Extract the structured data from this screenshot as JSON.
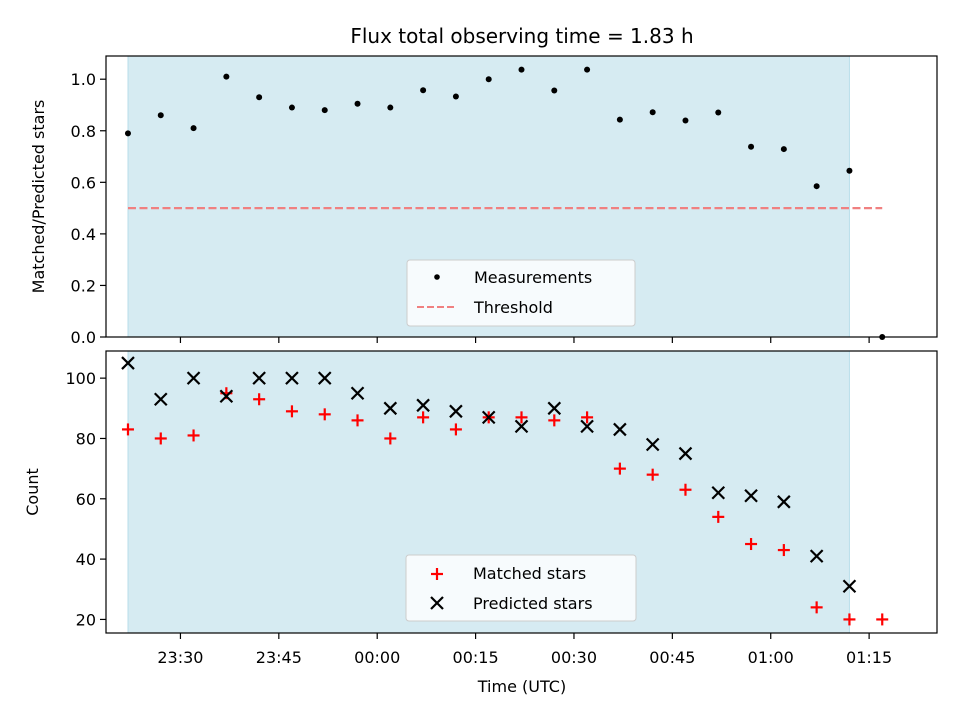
{
  "chart_data": [
    {
      "type": "scatter",
      "title": "Flux total observing time = 1.83 h",
      "xlabel": "",
      "ylabel": "Matched/Predicted stars",
      "ylim": [
        0,
        1.09
      ],
      "x_ticks": [
        "23:30",
        "23:45",
        "00:00",
        "00:15",
        "00:30",
        "00:45",
        "01:00",
        "01:15"
      ],
      "shaded_span": [
        "23:22",
        "01:12"
      ],
      "shade_color": "#add8e6",
      "legend_location": "lower center",
      "series": [
        {
          "name": "Measurements",
          "marker": "dot",
          "color": "#000000",
          "points": [
            [
              "23:22",
              0.79
            ],
            [
              "23:27",
              0.86
            ],
            [
              "23:32",
              0.81
            ],
            [
              "23:37",
              1.01
            ],
            [
              "23:42",
              0.93
            ],
            [
              "23:47",
              0.89
            ],
            [
              "23:52",
              0.88
            ],
            [
              "23:57",
              0.905
            ],
            [
              "00:02",
              0.89
            ],
            [
              "00:07",
              0.957
            ],
            [
              "00:12",
              0.933
            ],
            [
              "00:17",
              1.0
            ],
            [
              "00:22",
              1.037
            ],
            [
              "00:27",
              0.956
            ],
            [
              "00:32",
              1.037
            ],
            [
              "00:37",
              0.843
            ],
            [
              "00:42",
              0.872
            ],
            [
              "00:47",
              0.84
            ],
            [
              "00:52",
              0.871
            ],
            [
              "00:57",
              0.738
            ],
            [
              "01:02",
              0.729
            ],
            [
              "01:07",
              0.585
            ],
            [
              "01:12",
              0.645
            ],
            [
              "01:17",
              0.0
            ]
          ]
        },
        {
          "name": "Threshold",
          "marker": "dashed-line",
          "color": "#f08080",
          "y": 0.5,
          "x_range": [
            "23:22",
            "01:17"
          ]
        }
      ]
    },
    {
      "type": "scatter",
      "title": "",
      "xlabel": "Time (UTC)",
      "ylabel": "Count",
      "ylim": [
        15.5,
        109
      ],
      "y_ticks": [
        20,
        40,
        60,
        80,
        100
      ],
      "x_ticks": [
        "23:30",
        "23:45",
        "00:00",
        "00:15",
        "00:30",
        "00:45",
        "01:00",
        "01:15"
      ],
      "shaded_span": [
        "23:22",
        "01:12"
      ],
      "shade_color": "#add8e6",
      "legend_location": "lower center",
      "series": [
        {
          "name": "Matched stars",
          "marker": "plus",
          "color": "#ff0000",
          "points": [
            [
              "23:22",
              83
            ],
            [
              "23:27",
              80
            ],
            [
              "23:32",
              81
            ],
            [
              "23:37",
              95
            ],
            [
              "23:42",
              93
            ],
            [
              "23:47",
              89
            ],
            [
              "23:52",
              88
            ],
            [
              "23:57",
              86
            ],
            [
              "00:02",
              80
            ],
            [
              "00:07",
              87
            ],
            [
              "00:12",
              83
            ],
            [
              "00:17",
              87
            ],
            [
              "00:22",
              87
            ],
            [
              "00:27",
              86
            ],
            [
              "00:32",
              87
            ],
            [
              "00:37",
              70
            ],
            [
              "00:42",
              68
            ],
            [
              "00:47",
              63
            ],
            [
              "00:52",
              54
            ],
            [
              "00:57",
              45
            ],
            [
              "01:02",
              43
            ],
            [
              "01:07",
              24
            ],
            [
              "01:12",
              20
            ],
            [
              "01:17",
              20
            ]
          ]
        },
        {
          "name": "Predicted stars",
          "marker": "x",
          "color": "#000000",
          "points": [
            [
              "23:22",
              105
            ],
            [
              "23:27",
              93
            ],
            [
              "23:32",
              100
            ],
            [
              "23:37",
              94
            ],
            [
              "23:42",
              100
            ],
            [
              "23:47",
              100
            ],
            [
              "23:52",
              100
            ],
            [
              "23:57",
              95
            ],
            [
              "00:02",
              90
            ],
            [
              "00:07",
              91
            ],
            [
              "00:12",
              89
            ],
            [
              "00:17",
              87
            ],
            [
              "00:22",
              84
            ],
            [
              "00:27",
              90
            ],
            [
              "00:32",
              84
            ],
            [
              "00:37",
              83
            ],
            [
              "00:42",
              78
            ],
            [
              "00:47",
              75
            ],
            [
              "00:52",
              62
            ],
            [
              "00:57",
              61
            ],
            [
              "01:02",
              59
            ],
            [
              "01:07",
              41
            ],
            [
              "01:12",
              31
            ]
          ]
        }
      ]
    }
  ]
}
